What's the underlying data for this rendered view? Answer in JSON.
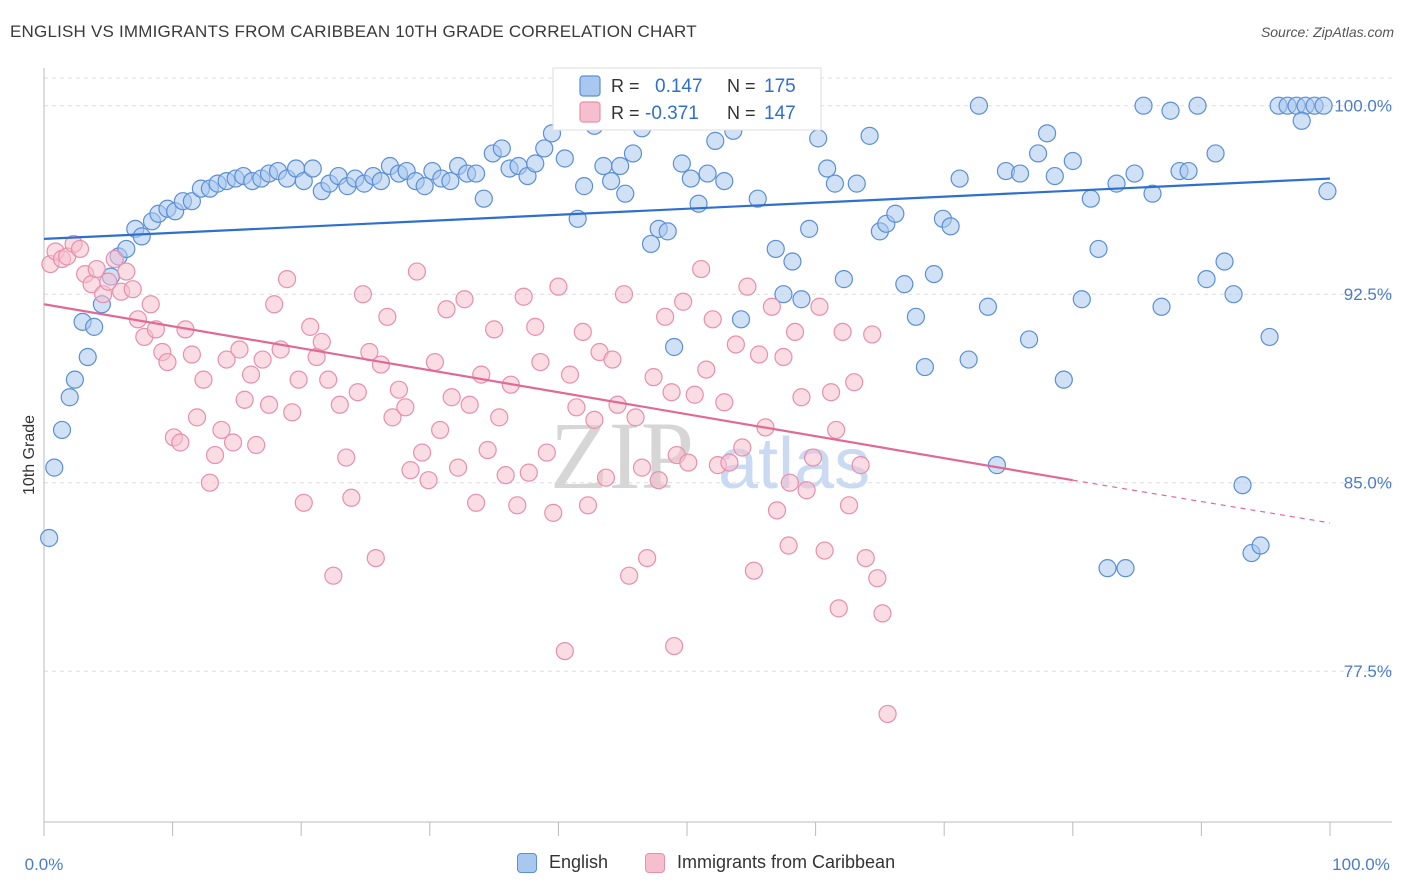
{
  "header": {
    "title": "ENGLISH VS IMMIGRANTS FROM CARIBBEAN 10TH GRADE CORRELATION CHART",
    "source": "Source: ZipAtlas.com"
  },
  "watermark": {
    "zip": "ZIP",
    "atlas": "atlas"
  },
  "stats_legend": {
    "english": {
      "r_label": "R =",
      "r_value": "0.147",
      "n_label": "N =",
      "n_value": "175"
    },
    "caribbean": {
      "r_label": "R =",
      "r_value": "-0.371",
      "n_label": "N =",
      "n_value": "147"
    }
  },
  "colors": {
    "english_fill": "#a9c8ef",
    "english_stroke": "#5b8fd6",
    "english_line": "#2f6fce",
    "caribbean_fill": "#f6bfd0",
    "caribbean_stroke": "#e88fac",
    "caribbean_line": "#e06a94",
    "tick_label": "#4a7cc9",
    "grid": "#dddddd"
  },
  "chart_data": {
    "type": "scatter",
    "title": "ENGLISH VS IMMIGRANTS FROM CARIBBEAN 10TH GRADE CORRELATION CHART",
    "xlabel": "",
    "ylabel": "10th Grade",
    "xlim": [
      0,
      100
    ],
    "ylim": [
      71.5,
      101.5
    ],
    "x_tick_labels": [
      "0.0%",
      "100.0%"
    ],
    "y_ticks": [
      77.5,
      85.0,
      92.5,
      100.0
    ],
    "y_tick_labels": [
      "77.5%",
      "85.0%",
      "92.5%",
      "100.0%"
    ],
    "grid": true,
    "legend_position": "bottom",
    "series": [
      {
        "name": "English",
        "color": "#5b8fd6",
        "trend": {
          "x": [
            0,
            100
          ],
          "y": [
            94.7,
            97.1
          ]
        },
        "points": [
          [
            0.4,
            82.8
          ],
          [
            0.8,
            85.6
          ],
          [
            1.4,
            87.1
          ],
          [
            2,
            88.4
          ],
          [
            2.4,
            89.1
          ],
          [
            3,
            91.4
          ],
          [
            3.4,
            90.0
          ],
          [
            3.9,
            91.2
          ],
          [
            4.5,
            92.1
          ],
          [
            5.2,
            93.2
          ],
          [
            5.8,
            94.0
          ],
          [
            6.4,
            94.3
          ],
          [
            7.1,
            95.1
          ],
          [
            7.6,
            94.8
          ],
          [
            8.4,
            95.4
          ],
          [
            8.9,
            95.7
          ],
          [
            9.6,
            95.9
          ],
          [
            10.2,
            95.8
          ],
          [
            10.8,
            96.2
          ],
          [
            11.5,
            96.2
          ],
          [
            12.2,
            96.7
          ],
          [
            12.9,
            96.7
          ],
          [
            13.5,
            96.9
          ],
          [
            14.2,
            97.0
          ],
          [
            14.9,
            97.1
          ],
          [
            15.5,
            97.2
          ],
          [
            16.2,
            97.0
          ],
          [
            16.9,
            97.1
          ],
          [
            17.5,
            97.3
          ],
          [
            18.2,
            97.4
          ],
          [
            18.9,
            97.1
          ],
          [
            19.6,
            97.5
          ],
          [
            20.2,
            97.0
          ],
          [
            20.9,
            97.5
          ],
          [
            21.6,
            96.6
          ],
          [
            22.2,
            96.9
          ],
          [
            22.9,
            97.2
          ],
          [
            23.6,
            96.8
          ],
          [
            24.2,
            97.1
          ],
          [
            24.9,
            96.9
          ],
          [
            25.6,
            97.2
          ],
          [
            26.2,
            97.0
          ],
          [
            26.9,
            97.6
          ],
          [
            27.6,
            97.3
          ],
          [
            28.2,
            97.4
          ],
          [
            28.9,
            97.0
          ],
          [
            29.6,
            96.8
          ],
          [
            30.2,
            97.4
          ],
          [
            30.9,
            97.1
          ],
          [
            31.6,
            97.0
          ],
          [
            32.2,
            97.6
          ],
          [
            32.9,
            97.3
          ],
          [
            33.6,
            97.3
          ],
          [
            34.2,
            96.3
          ],
          [
            34.9,
            98.1
          ],
          [
            35.6,
            98.3
          ],
          [
            36.2,
            97.5
          ],
          [
            36.9,
            97.6
          ],
          [
            37.6,
            97.2
          ],
          [
            38.2,
            97.7
          ],
          [
            38.9,
            98.3
          ],
          [
            39.5,
            98.9
          ],
          [
            40.5,
            97.9
          ],
          [
            41.5,
            95.5
          ],
          [
            42,
            96.8
          ],
          [
            42.8,
            99.2
          ],
          [
            43.5,
            97.6
          ],
          [
            44.1,
            97.0
          ],
          [
            44.8,
            97.6
          ],
          [
            45.2,
            96.5
          ],
          [
            45.8,
            98.1
          ],
          [
            46.5,
            99.1
          ],
          [
            47.2,
            94.5
          ],
          [
            47.8,
            95.1
          ],
          [
            48.5,
            95.0
          ],
          [
            49.0,
            90.4
          ],
          [
            49.6,
            97.7
          ],
          [
            50.3,
            97.1
          ],
          [
            50.9,
            96.1
          ],
          [
            51.6,
            97.3
          ],
          [
            52.2,
            98.6
          ],
          [
            52.9,
            97.0
          ],
          [
            53.6,
            99.0
          ],
          [
            54.2,
            91.5
          ],
          [
            54.9,
            99.9
          ],
          [
            55.5,
            96.3
          ],
          [
            56.2,
            99.5
          ],
          [
            56.9,
            94.3
          ],
          [
            57.5,
            92.5
          ],
          [
            58.2,
            93.8
          ],
          [
            58.9,
            92.3
          ],
          [
            59.5,
            95.1
          ],
          [
            60.2,
            98.7
          ],
          [
            60.9,
            97.5
          ],
          [
            61.5,
            96.9
          ],
          [
            62.2,
            93.1
          ],
          [
            63.2,
            96.9
          ],
          [
            64.2,
            98.8
          ],
          [
            65.0,
            95.0
          ],
          [
            65.5,
            95.3
          ],
          [
            66.2,
            95.7
          ],
          [
            66.9,
            92.9
          ],
          [
            67.8,
            91.6
          ],
          [
            68.5,
            89.6
          ],
          [
            69.2,
            93.3
          ],
          [
            69.9,
            95.5
          ],
          [
            70.5,
            95.2
          ],
          [
            71.2,
            97.1
          ],
          [
            71.9,
            89.9
          ],
          [
            72.7,
            100
          ],
          [
            73.4,
            92.0
          ],
          [
            74.1,
            85.7
          ],
          [
            74.8,
            97.4
          ],
          [
            75.9,
            97.3
          ],
          [
            76.6,
            90.7
          ],
          [
            77.3,
            98.1
          ],
          [
            78.0,
            98.9
          ],
          [
            78.6,
            97.2
          ],
          [
            79.3,
            89.1
          ],
          [
            80.0,
            97.8
          ],
          [
            80.7,
            92.3
          ],
          [
            81.4,
            96.3
          ],
          [
            82.0,
            94.3
          ],
          [
            82.7,
            81.6
          ],
          [
            83.4,
            96.9
          ],
          [
            84.1,
            81.6
          ],
          [
            84.8,
            97.3
          ],
          [
            85.5,
            100
          ],
          [
            86.2,
            96.5
          ],
          [
            86.9,
            92.0
          ],
          [
            87.6,
            99.8
          ],
          [
            88.3,
            97.4
          ],
          [
            89.0,
            97.4
          ],
          [
            89.7,
            100
          ],
          [
            90.4,
            93.1
          ],
          [
            91.1,
            98.1
          ],
          [
            91.8,
            93.8
          ],
          [
            92.5,
            92.5
          ],
          [
            93.2,
            84.9
          ],
          [
            93.9,
            82.2
          ],
          [
            94.6,
            82.5
          ],
          [
            95.3,
            90.8
          ],
          [
            96.0,
            100
          ],
          [
            96.7,
            100
          ],
          [
            97.4,
            100
          ],
          [
            98.1,
            100
          ],
          [
            98.8,
            100
          ],
          [
            99.5,
            100
          ],
          [
            99.8,
            96.6
          ],
          [
            97.8,
            99.4
          ]
        ]
      },
      {
        "name": "Immigrants from Caribbean",
        "color": "#e88fac",
        "trend": {
          "x": [
            0,
            80
          ],
          "y": [
            92.1,
            85.1
          ]
        },
        "trend_dashed": {
          "x": [
            80,
            100
          ],
          "y": [
            85.1,
            83.4
          ]
        },
        "points": [
          [
            0.5,
            93.7
          ],
          [
            0.9,
            94.2
          ],
          [
            1.4,
            93.9
          ],
          [
            1.8,
            94.0
          ],
          [
            2.3,
            94.5
          ],
          [
            2.8,
            94.3
          ],
          [
            3.2,
            93.3
          ],
          [
            3.7,
            92.9
          ],
          [
            4.1,
            93.5
          ],
          [
            4.6,
            92.5
          ],
          [
            5.0,
            93.0
          ],
          [
            5.5,
            93.9
          ],
          [
            6.0,
            92.6
          ],
          [
            6.4,
            93.4
          ],
          [
            6.9,
            92.7
          ],
          [
            7.3,
            91.5
          ],
          [
            7.8,
            90.8
          ],
          [
            8.3,
            92.1
          ],
          [
            8.7,
            91.1
          ],
          [
            9.2,
            90.2
          ],
          [
            9.6,
            89.8
          ],
          [
            10.1,
            86.8
          ],
          [
            10.6,
            86.6
          ],
          [
            11.0,
            91.1
          ],
          [
            11.5,
            90.1
          ],
          [
            11.9,
            87.6
          ],
          [
            12.4,
            89.1
          ],
          [
            12.9,
            85.0
          ],
          [
            13.3,
            86.1
          ],
          [
            13.8,
            87.1
          ],
          [
            14.2,
            89.9
          ],
          [
            14.7,
            86.6
          ],
          [
            15.2,
            90.3
          ],
          [
            15.6,
            88.3
          ],
          [
            16.1,
            89.3
          ],
          [
            16.5,
            86.5
          ],
          [
            17.0,
            89.9
          ],
          [
            17.5,
            88.1
          ],
          [
            17.9,
            92.1
          ],
          [
            18.4,
            90.3
          ],
          [
            18.9,
            93.1
          ],
          [
            19.3,
            87.8
          ],
          [
            19.8,
            89.1
          ],
          [
            20.2,
            84.2
          ],
          [
            20.7,
            91.2
          ],
          [
            21.2,
            90.0
          ],
          [
            21.6,
            90.6
          ],
          [
            22.1,
            89.1
          ],
          [
            22.5,
            81.3
          ],
          [
            23.0,
            88.1
          ],
          [
            23.5,
            86.0
          ],
          [
            23.9,
            84.4
          ],
          [
            24.4,
            88.6
          ],
          [
            24.8,
            92.5
          ],
          [
            25.3,
            90.2
          ],
          [
            25.8,
            82.0
          ],
          [
            26.2,
            89.7
          ],
          [
            26.7,
            91.6
          ],
          [
            27.1,
            87.6
          ],
          [
            27.6,
            88.7
          ],
          [
            28.1,
            88.0
          ],
          [
            28.5,
            85.5
          ],
          [
            29.0,
            93.4
          ],
          [
            29.4,
            86.2
          ],
          [
            29.9,
            85.1
          ],
          [
            30.4,
            89.8
          ],
          [
            30.8,
            87.1
          ],
          [
            31.3,
            91.9
          ],
          [
            31.7,
            88.4
          ],
          [
            32.2,
            85.6
          ],
          [
            32.7,
            92.3
          ],
          [
            33.1,
            88.1
          ],
          [
            33.6,
            84.2
          ],
          [
            34.0,
            89.3
          ],
          [
            34.5,
            86.3
          ],
          [
            35.0,
            91.1
          ],
          [
            35.4,
            87.6
          ],
          [
            35.9,
            85.3
          ],
          [
            36.3,
            88.9
          ],
          [
            36.8,
            84.1
          ],
          [
            37.3,
            92.4
          ],
          [
            37.7,
            85.4
          ],
          [
            38.2,
            91.2
          ],
          [
            38.6,
            89.8
          ],
          [
            39.1,
            86.2
          ],
          [
            39.6,
            83.8
          ],
          [
            40.0,
            92.8
          ],
          [
            40.5,
            78.3
          ],
          [
            40.9,
            89.3
          ],
          [
            41.4,
            88.0
          ],
          [
            41.9,
            91.0
          ],
          [
            42.3,
            84.1
          ],
          [
            42.8,
            87.5
          ],
          [
            43.2,
            90.2
          ],
          [
            43.7,
            85.2
          ],
          [
            44.2,
            89.9
          ],
          [
            44.6,
            88.1
          ],
          [
            45.1,
            92.5
          ],
          [
            45.5,
            81.3
          ],
          [
            46.0,
            87.6
          ],
          [
            46.5,
            85.6
          ],
          [
            46.9,
            82.0
          ],
          [
            47.4,
            89.2
          ],
          [
            47.8,
            85.1
          ],
          [
            48.3,
            91.6
          ],
          [
            48.8,
            88.6
          ],
          [
            49.2,
            86.1
          ],
          [
            49.7,
            92.2
          ],
          [
            50.1,
            85.8
          ],
          [
            50.6,
            88.5
          ],
          [
            51.1,
            93.5
          ],
          [
            51.5,
            89.5
          ],
          [
            52.0,
            91.5
          ],
          [
            52.4,
            85.7
          ],
          [
            52.9,
            88.2
          ],
          [
            53.3,
            85.8
          ],
          [
            53.8,
            90.5
          ],
          [
            54.3,
            86.4
          ],
          [
            54.7,
            92.8
          ],
          [
            55.2,
            81.5
          ],
          [
            55.6,
            90.1
          ],
          [
            56.1,
            87.2
          ],
          [
            56.6,
            92.0
          ],
          [
            57.0,
            83.9
          ],
          [
            57.5,
            90.0
          ],
          [
            57.9,
            82.5
          ],
          [
            58.4,
            91.0
          ],
          [
            58.9,
            88.4
          ],
          [
            59.3,
            84.7
          ],
          [
            59.8,
            86.0
          ],
          [
            60.3,
            92.0
          ],
          [
            60.7,
            82.3
          ],
          [
            61.2,
            88.6
          ],
          [
            61.6,
            87.1
          ],
          [
            62.1,
            91.0
          ],
          [
            62.6,
            84.1
          ],
          [
            63.0,
            89.0
          ],
          [
            63.5,
            85.7
          ],
          [
            63.9,
            82.0
          ],
          [
            64.4,
            90.9
          ],
          [
            64.8,
            81.2
          ],
          [
            65.2,
            79.8
          ],
          [
            65.6,
            75.8
          ],
          [
            61.8,
            80.0
          ],
          [
            58.0,
            85.0
          ],
          [
            56.5,
            99.6
          ],
          [
            49.0,
            78.5
          ]
        ]
      }
    ]
  }
}
